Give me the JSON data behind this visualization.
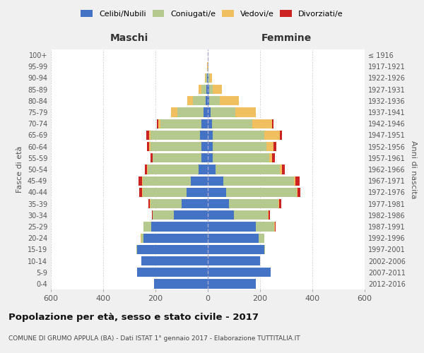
{
  "age_groups": [
    "0-4",
    "5-9",
    "10-14",
    "15-19",
    "20-24",
    "25-29",
    "30-34",
    "35-39",
    "40-44",
    "45-49",
    "50-54",
    "55-59",
    "60-64",
    "65-69",
    "70-74",
    "75-79",
    "80-84",
    "85-89",
    "90-94",
    "95-99",
    "100+"
  ],
  "birth_years": [
    "2012-2016",
    "2007-2011",
    "2002-2006",
    "1997-2001",
    "1992-1996",
    "1987-1991",
    "1982-1986",
    "1977-1981",
    "1972-1976",
    "1967-1971",
    "1962-1966",
    "1957-1961",
    "1952-1956",
    "1947-1951",
    "1942-1946",
    "1937-1941",
    "1932-1936",
    "1927-1931",
    "1922-1926",
    "1917-1921",
    "≤ 1916"
  ],
  "maschi": {
    "celibi": [
      205,
      270,
      255,
      270,
      245,
      215,
      130,
      100,
      80,
      65,
      35,
      25,
      25,
      30,
      25,
      15,
      8,
      5,
      2,
      0,
      1
    ],
    "coniugati": [
      0,
      0,
      0,
      2,
      10,
      30,
      80,
      120,
      170,
      185,
      195,
      185,
      195,
      190,
      155,
      100,
      50,
      20,
      5,
      1,
      0
    ],
    "vedovi": [
      0,
      0,
      0,
      0,
      1,
      0,
      1,
      1,
      2,
      2,
      2,
      2,
      3,
      5,
      10,
      25,
      20,
      10,
      3,
      1,
      0
    ],
    "divorziati": [
      0,
      0,
      0,
      0,
      0,
      1,
      3,
      5,
      10,
      12,
      8,
      8,
      10,
      10,
      5,
      0,
      0,
      0,
      0,
      0,
      0
    ]
  },
  "femmine": {
    "nubili": [
      185,
      240,
      200,
      215,
      195,
      185,
      100,
      80,
      70,
      60,
      30,
      20,
      20,
      20,
      15,
      10,
      5,
      5,
      2,
      0,
      1
    ],
    "coniugate": [
      0,
      0,
      0,
      5,
      20,
      70,
      130,
      190,
      270,
      270,
      245,
      215,
      205,
      195,
      155,
      95,
      40,
      15,
      5,
      0,
      0
    ],
    "vedove": [
      0,
      0,
      0,
      0,
      1,
      2,
      2,
      3,
      3,
      5,
      8,
      12,
      25,
      60,
      75,
      80,
      75,
      35,
      8,
      2,
      0
    ],
    "divorziate": [
      0,
      0,
      0,
      0,
      0,
      2,
      5,
      8,
      12,
      15,
      12,
      10,
      12,
      10,
      5,
      0,
      0,
      0,
      0,
      0,
      0
    ]
  },
  "colors": {
    "celibi": "#4472C4",
    "coniugati": "#b5c98e",
    "vedovi": "#f0c060",
    "divorziati": "#cc2222"
  },
  "title": "Popolazione per età, sesso e stato civile - 2017",
  "subtitle": "COMUNE DI GRUMO APPULA (BA) - Dati ISTAT 1° gennaio 2017 - Elaborazione TUTTITALIA.IT",
  "xlabel_left": "Maschi",
  "xlabel_right": "Femmine",
  "ylabel_left": "Fasce di età",
  "ylabel_right": "Anni di nascita",
  "xmax": 600,
  "bg_color": "#f0f0f0",
  "plot_bg": "#ffffff"
}
